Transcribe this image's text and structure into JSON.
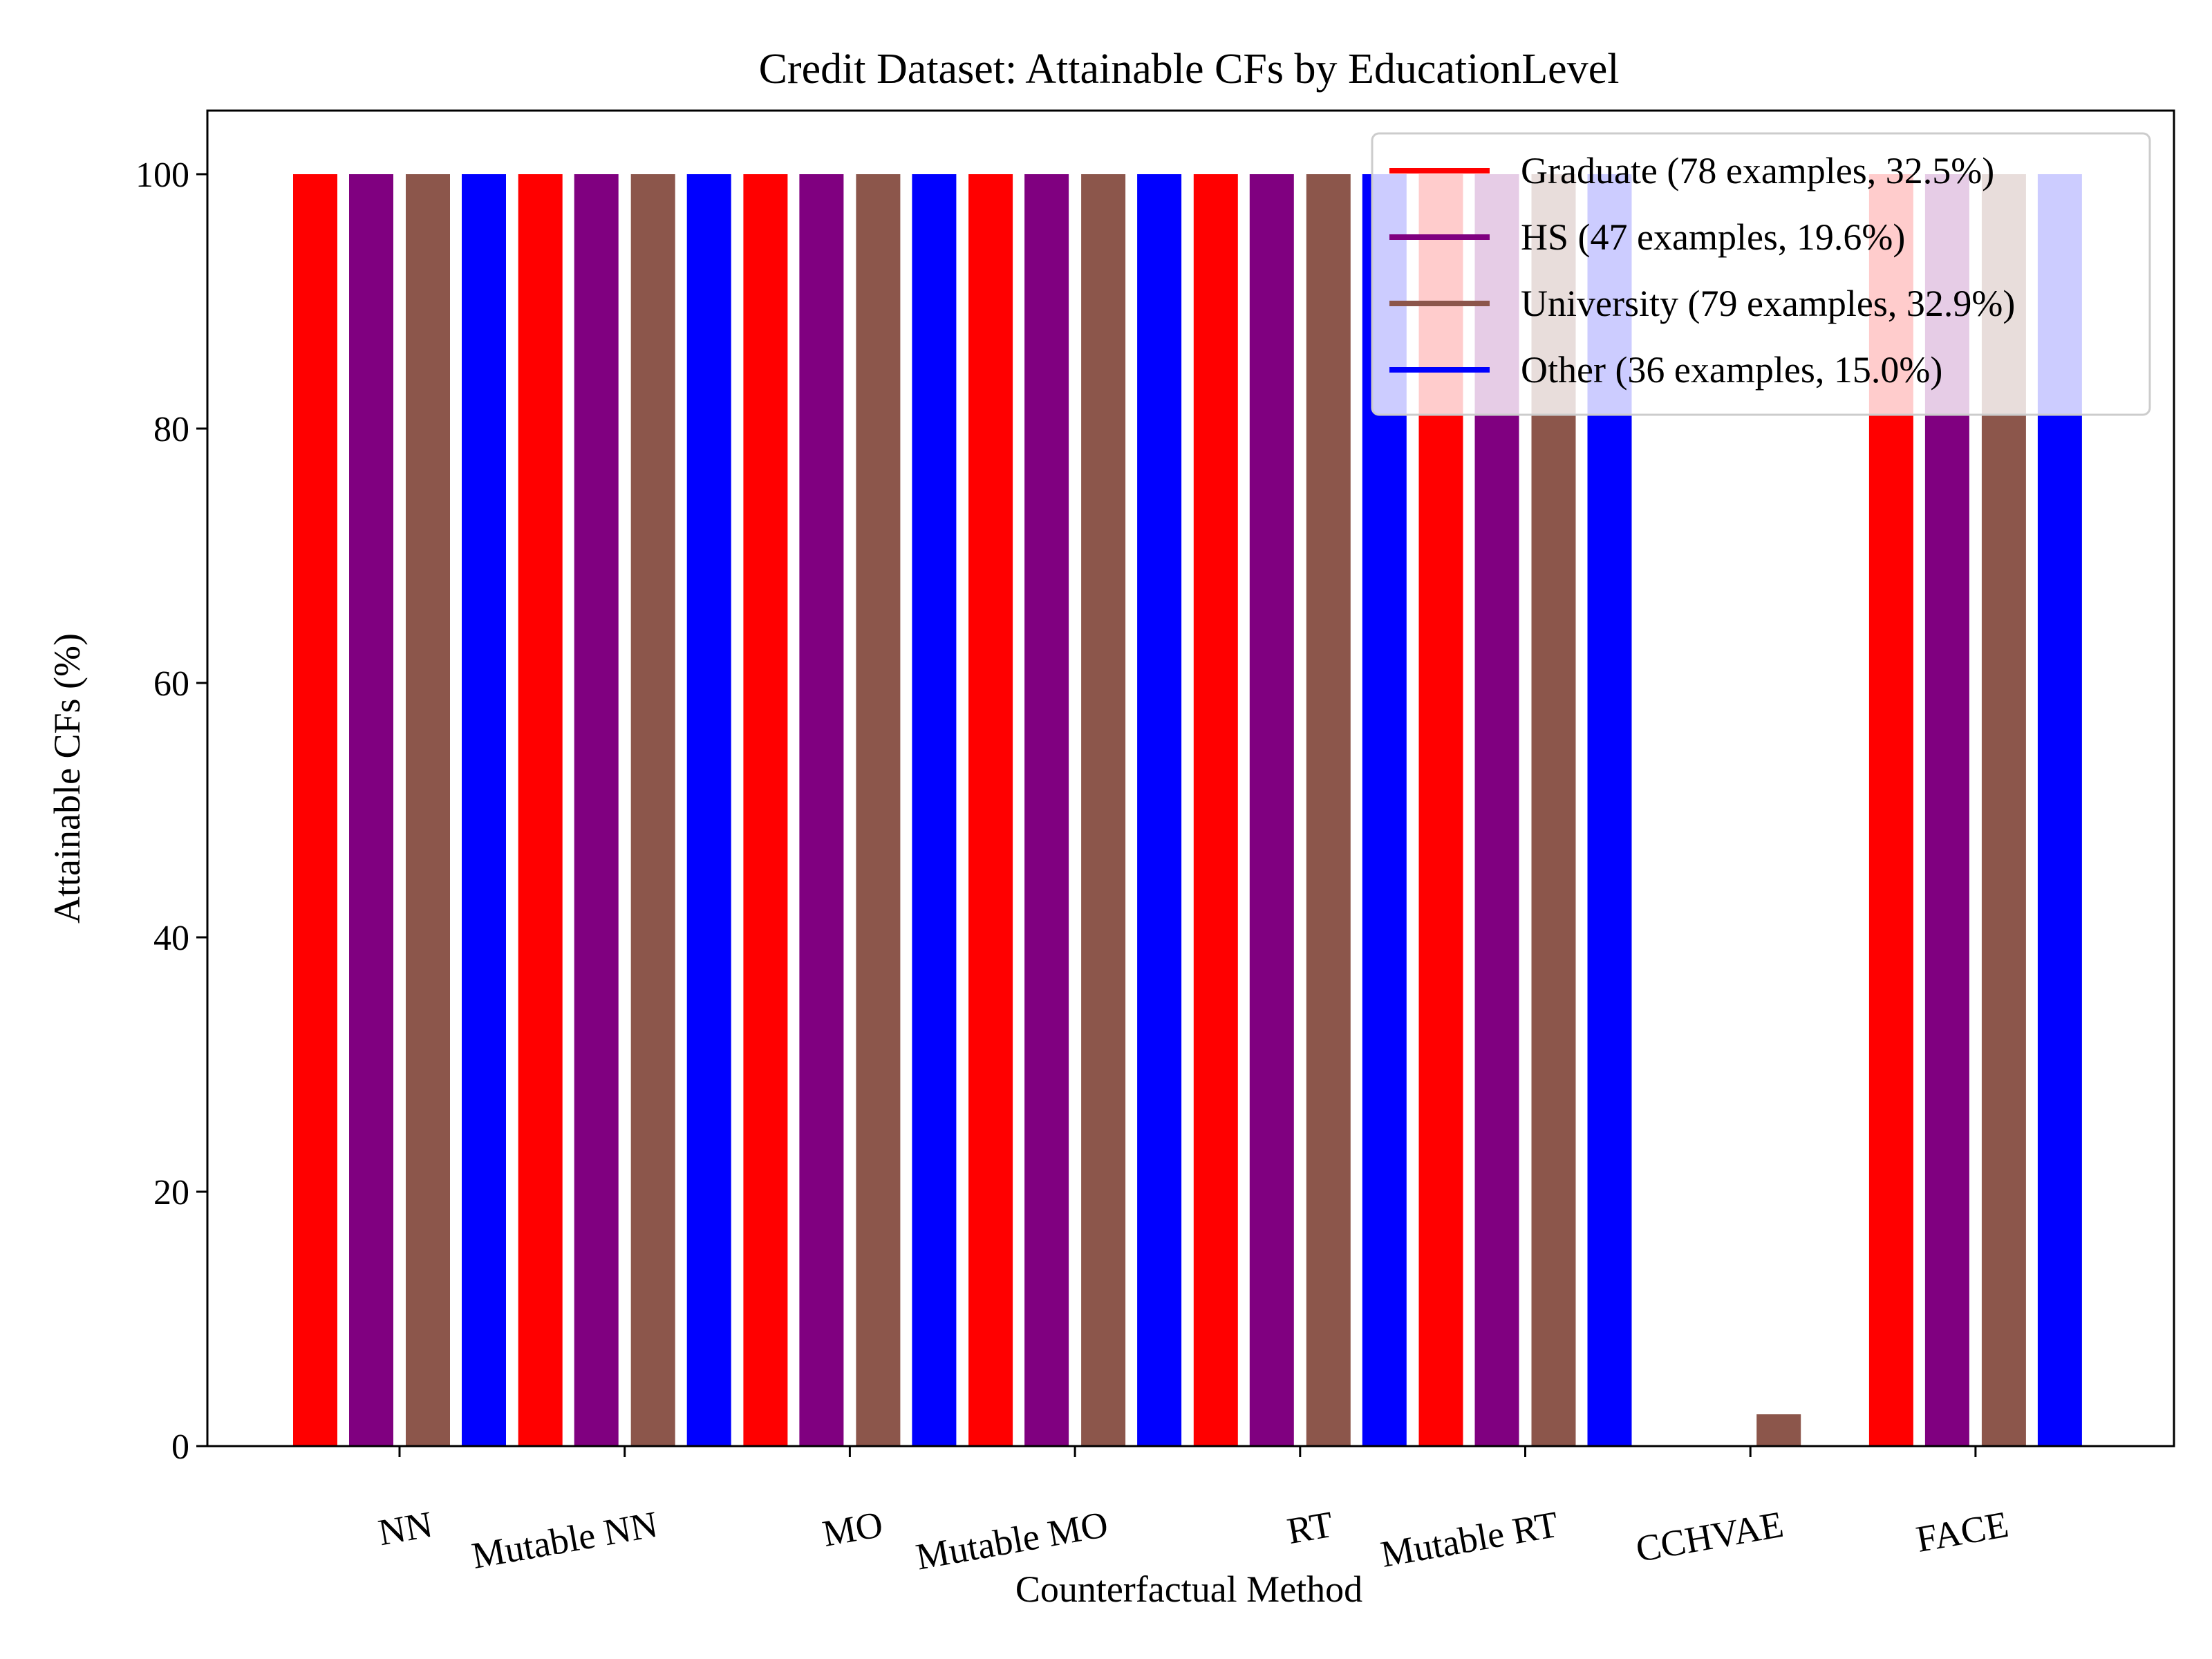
{
  "chart_data": {
    "type": "bar",
    "title": "Credit Dataset: Attainable CFs by EducationLevel",
    "xlabel": "Counterfactual Method",
    "ylabel": "Attainable CFs (%)",
    "ylim": [
      0,
      105
    ],
    "yticks": [
      0,
      20,
      40,
      60,
      80,
      100
    ],
    "grid": false,
    "legend_position": "top-right",
    "categories": [
      "NN",
      "Mutable NN",
      "MO",
      "Mutable MO",
      "RT",
      "Mutable RT",
      "CCHVAE",
      "FACE"
    ],
    "series": [
      {
        "name": "Graduate (78 examples, 32.5%)",
        "color": "#ff0000",
        "values": [
          100,
          100,
          100,
          100,
          100,
          100,
          0,
          100
        ]
      },
      {
        "name": "HS (47 examples, 19.6%)",
        "color": "#800080",
        "values": [
          100,
          100,
          100,
          100,
          100,
          100,
          0,
          100
        ]
      },
      {
        "name": "University (79 examples, 32.9%)",
        "color": "#8c564b",
        "values": [
          100,
          100,
          100,
          100,
          100,
          100,
          2.5,
          100
        ]
      },
      {
        "name": "Other (36 examples, 15.0%)",
        "color": "#0000ff",
        "values": [
          100,
          100,
          100,
          100,
          100,
          100,
          0,
          100
        ]
      }
    ]
  }
}
